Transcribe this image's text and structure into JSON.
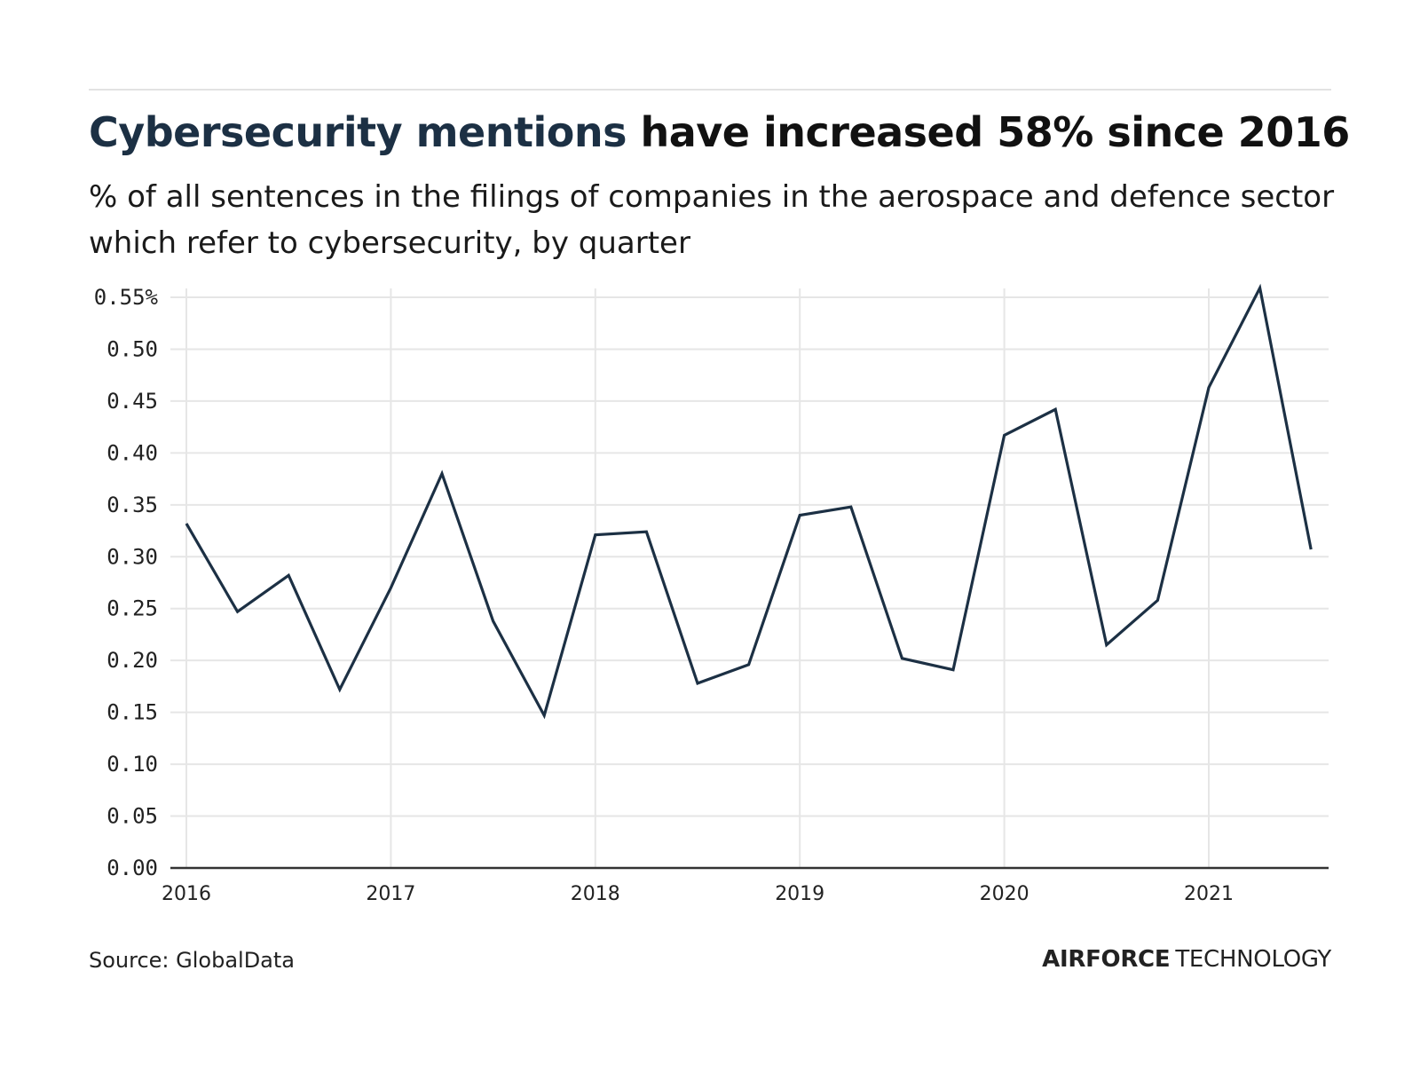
{
  "header": {
    "title_highlight": "Cybersecurity mentions",
    "title_rest": " have increased 58% since 2016",
    "subtitle": "% of all sentences in the filings of companies in the aerospace and defence sector which refer to cybersecurity, by quarter"
  },
  "footer": {
    "source": "Source: GlobalData",
    "brand_bold": "AIRFORCE",
    "brand_light": "TECHNOLOGY"
  },
  "colors": {
    "line": "#1c3044",
    "title_highlight": "#1c3044",
    "grid": "#e6e6e6",
    "axis": "#333333"
  },
  "chart_data": {
    "type": "line",
    "title": "Cybersecurity mentions have increased 58% since 2016",
    "subtitle": "% of all sentences in the filings of companies in the aerospace and defence sector which refer to cybersecurity, by quarter",
    "xlabel": "",
    "ylabel": "",
    "x": [
      2016.0,
      2016.25,
      2016.5,
      2016.75,
      2017.0,
      2017.25,
      2017.5,
      2017.75,
      2018.0,
      2018.25,
      2018.5,
      2018.75,
      2019.0,
      2019.25,
      2019.5,
      2019.75,
      2020.0,
      2020.25,
      2020.5,
      2020.75,
      2021.0,
      2021.25,
      2021.5
    ],
    "series": [
      {
        "name": "Cybersecurity mentions (%)",
        "values": [
          0.332,
          0.247,
          0.282,
          0.172,
          0.27,
          0.38,
          0.238,
          0.147,
          0.321,
          0.324,
          0.178,
          0.196,
          0.34,
          0.348,
          0.202,
          0.191,
          0.417,
          0.442,
          0.215,
          0.258,
          0.463,
          0.559,
          0.307
        ]
      }
    ],
    "xlim": [
      2016,
      2021.7
    ],
    "ylim": [
      0,
      0.55
    ],
    "x_ticks": [
      2016,
      2017,
      2018,
      2019,
      2020,
      2021
    ],
    "x_tick_labels": [
      "2016",
      "2017",
      "2018",
      "2019",
      "2020",
      "2021"
    ],
    "y_ticks": [
      0,
      0.05,
      0.1,
      0.15,
      0.2,
      0.25,
      0.3,
      0.35,
      0.4,
      0.45,
      0.5,
      0.55
    ],
    "y_tick_labels": [
      "0.00",
      "0.05",
      "0.10",
      "0.15",
      "0.20",
      "0.25",
      "0.30",
      "0.35",
      "0.40",
      "0.45",
      "0.50",
      "0.55%"
    ],
    "grid": true,
    "legend": "none",
    "source": "Source: GlobalData"
  }
}
